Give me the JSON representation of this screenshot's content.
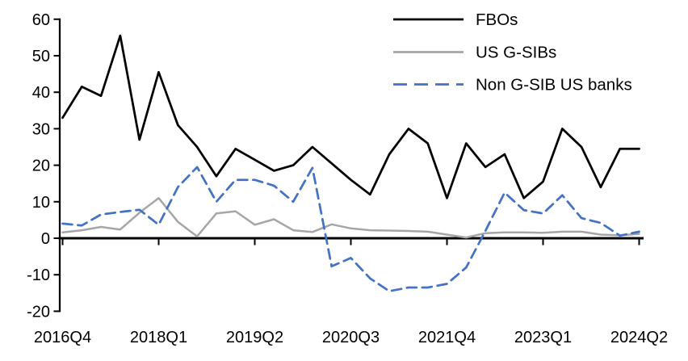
{
  "chart_data": {
    "type": "line",
    "title": "",
    "xlabel": "",
    "ylabel": "",
    "grid": false,
    "legend_position": "top-right",
    "ylim": [
      -20,
      60
    ],
    "y_ticks": [
      60,
      50,
      40,
      30,
      20,
      10,
      0,
      -10,
      -20
    ],
    "x_labels": [
      "2016Q4",
      "2017Q1",
      "2017Q2",
      "2017Q3",
      "2017Q4",
      "2018Q1",
      "2018Q2",
      "2018Q3",
      "2018Q4",
      "2019Q1",
      "2019Q2",
      "2019Q3",
      "2019Q4",
      "2020Q1",
      "2020Q2",
      "2020Q3",
      "2020Q4",
      "2021Q1",
      "2021Q2",
      "2021Q3",
      "2021Q4",
      "2022Q1",
      "2022Q2",
      "2022Q3",
      "2022Q4",
      "2023Q1",
      "2023Q2",
      "2023Q3",
      "2023Q4",
      "2024Q1",
      "2024Q2"
    ],
    "x_tick_labels": [
      "2016Q4",
      "2018Q1",
      "2019Q2",
      "2020Q3",
      "2021Q4",
      "2023Q1",
      "2024Q2"
    ],
    "x_tick_indices": [
      0,
      5,
      10,
      15,
      20,
      25,
      30
    ],
    "axis_color": "#000000",
    "background_color": "#ffffff",
    "series": [
      {
        "name": "FBOs",
        "key": "fbos",
        "color": "#000000",
        "style": "solid",
        "values": [
          33,
          41.5,
          39,
          55.5,
          27,
          45.5,
          31,
          25,
          17,
          24.5,
          21.5,
          18.5,
          20,
          25,
          20.5,
          16,
          12,
          23,
          30,
          26,
          11,
          26,
          19.5,
          23,
          11,
          15.5,
          30,
          25,
          14,
          24.5,
          24.5
        ]
      },
      {
        "name": "US G-SIBs",
        "key": "us-gsibs",
        "color": "#a6a6a6",
        "style": "solid",
        "values": [
          1.6,
          2.2,
          3.1,
          2.4,
          7,
          11,
          4.5,
          0.5,
          6.8,
          7.4,
          3.7,
          5.2,
          2.2,
          1.7,
          3.8,
          2.7,
          2.2,
          2.1,
          2,
          1.8,
          1,
          0.2,
          1.4,
          1.6,
          1.6,
          1.5,
          1.8,
          1.8,
          1,
          0.8,
          1.2
        ]
      },
      {
        "name": "Non G-SIB US banks",
        "key": "non-gsib-us-banks",
        "color": "#4472c4",
        "style": "dashed",
        "values": [
          4,
          3.5,
          6.5,
          7.2,
          7.8,
          3.7,
          14,
          19.5,
          10,
          16,
          16,
          14.4,
          10,
          19.3,
          -7.7,
          -5.4,
          -11,
          -14.5,
          -13.5,
          -13.5,
          -12.5,
          -8,
          2,
          12.5,
          7.7,
          6.8,
          11.8,
          5.5,
          4.2,
          0.7,
          1.8
        ]
      }
    ]
  }
}
